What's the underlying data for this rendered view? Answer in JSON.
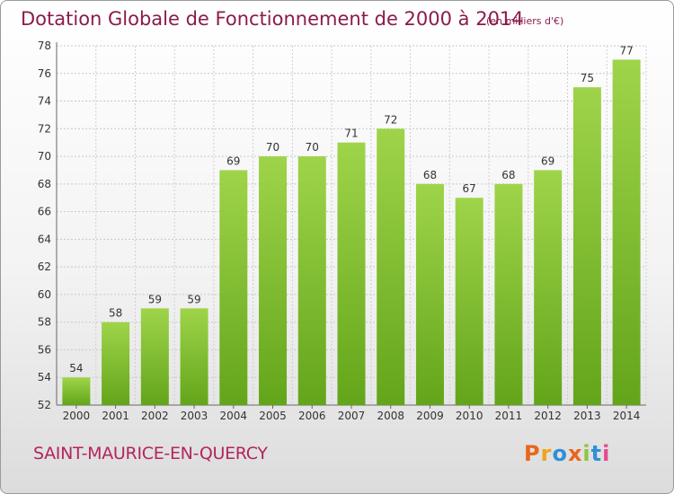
{
  "chart_data": {
    "type": "bar",
    "title": "Dotation Globale de Fonctionnement de 2000 à 2014",
    "subtitle": "(en milliers d'€)",
    "categories": [
      "2000",
      "2001",
      "2002",
      "2003",
      "2004",
      "2005",
      "2006",
      "2007",
      "2008",
      "2009",
      "2010",
      "2011",
      "2012",
      "2013",
      "2014"
    ],
    "values": [
      54,
      58,
      59,
      59,
      69,
      70,
      70,
      71,
      72,
      68,
      67,
      68,
      69,
      75,
      77
    ],
    "ylim": [
      52,
      78
    ],
    "yticks": [
      52,
      54,
      56,
      58,
      60,
      62,
      64,
      66,
      68,
      70,
      72,
      74,
      76,
      78
    ],
    "xlabel": "",
    "ylabel": "",
    "grid": true,
    "bar_color": "#7fbf2a"
  },
  "footer": {
    "commune": "SAINT-MAURICE-EN-QUERCY",
    "logo": "Proxiti"
  },
  "colors": {
    "title": "#8a1c4c",
    "commune": "#b3245f",
    "logo": [
      "#e8671b",
      "#f2a21b",
      "#2f8fd8",
      "#e8671b",
      "#8cc63f",
      "#2f8fd8",
      "#e84a8a"
    ]
  }
}
